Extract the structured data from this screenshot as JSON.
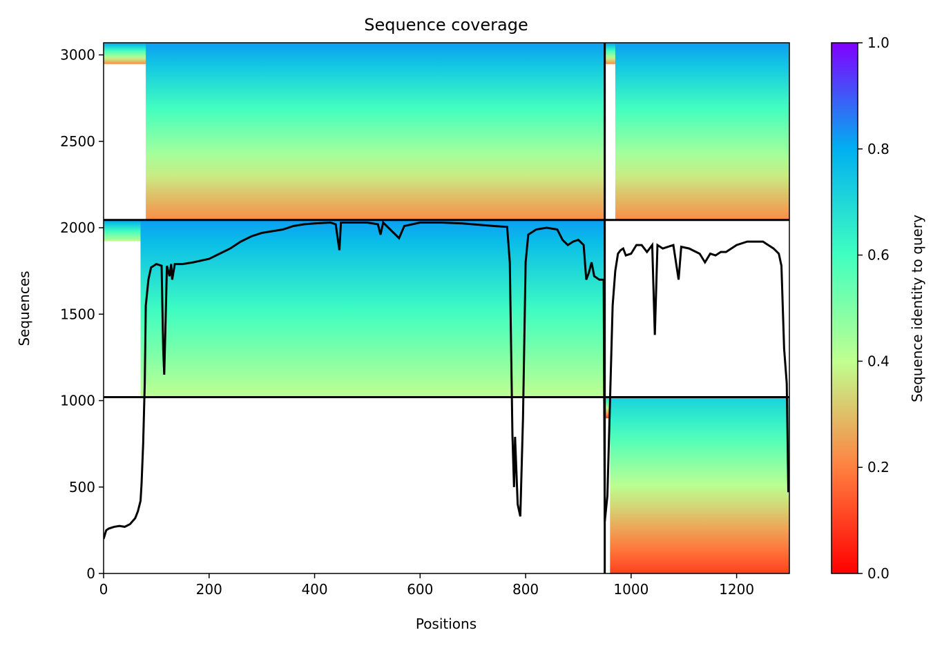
{
  "chart_data": {
    "type": "heatmap",
    "title": "Sequence coverage",
    "xlabel": "Positions",
    "ylabel": "Sequences",
    "colorbar_label": "Sequence identity to query",
    "xlim": [
      0,
      1300
    ],
    "ylim": [
      0,
      3070
    ],
    "x_ticks": [
      0,
      200,
      400,
      600,
      800,
      1000,
      1200
    ],
    "y_ticks": [
      0,
      500,
      1000,
      1500,
      2000,
      2500,
      3000
    ],
    "colorbar_range": [
      0,
      1
    ],
    "colorbar_ticks": [
      "0.0",
      "0.2",
      "0.4",
      "0.6",
      "0.8",
      "1.0"
    ],
    "colormap": [
      "#ff0000",
      "#ff8040",
      "#c0ff90",
      "#40ffc0",
      "#00b0f0",
      "#8000ff"
    ],
    "segment_boundaries": {
      "position": 950,
      "sequence": [
        1020,
        2045
      ]
    },
    "blocks": [
      {
        "x": [
          0,
          950
        ],
        "y": [
          2045,
          3070
        ],
        "identity_top": 0.82,
        "identity_bottom": 0.22,
        "coverage_start_x": 80
      },
      {
        "x": [
          950,
          1300
        ],
        "y": [
          2045,
          3070
        ],
        "identity_top": 0.82,
        "identity_bottom": 0.22,
        "coverage_start_x": 970
      },
      {
        "x": [
          0,
          950
        ],
        "y": [
          1020,
          2045
        ],
        "identity_top": 0.82,
        "identity_bottom": 0.4,
        "coverage_start_x": 70
      },
      {
        "x": [
          950,
          1300
        ],
        "y": [
          0,
          1020
        ],
        "identity_top": 0.72,
        "identity_bottom": 0.1,
        "coverage_start_x": 960
      }
    ],
    "coverage_line": {
      "color": "#000000",
      "x": [
        0,
        5,
        10,
        20,
        30,
        40,
        50,
        60,
        65,
        70,
        72,
        75,
        78,
        80,
        85,
        90,
        95,
        100,
        110,
        113,
        115,
        117,
        120,
        125,
        128,
        130,
        135,
        150,
        170,
        200,
        220,
        240,
        260,
        280,
        300,
        320,
        340,
        360,
        380,
        400,
        430,
        440,
        447,
        450,
        455,
        470,
        500,
        520,
        525,
        530,
        560,
        570,
        600,
        640,
        680,
        700,
        740,
        765,
        770,
        775,
        778,
        780,
        785,
        790,
        795,
        800,
        805,
        820,
        840,
        860,
        870,
        880,
        890,
        900,
        910,
        915,
        920,
        925,
        930,
        940,
        948,
        950,
        955,
        960,
        965,
        970,
        975,
        980,
        985,
        990,
        1000,
        1010,
        1020,
        1030,
        1040,
        1045,
        1050,
        1060,
        1080,
        1090,
        1095,
        1110,
        1130,
        1140,
        1150,
        1160,
        1170,
        1180,
        1200,
        1220,
        1240,
        1250,
        1260,
        1270,
        1280,
        1285,
        1290,
        1295,
        1298
      ],
      "y": [
        200,
        250,
        260,
        270,
        275,
        270,
        285,
        320,
        360,
        420,
        520,
        750,
        1100,
        1550,
        1700,
        1770,
        1780,
        1790,
        1780,
        1300,
        1150,
        1400,
        1780,
        1720,
        1790,
        1700,
        1790,
        1790,
        1800,
        1820,
        1850,
        1880,
        1920,
        1950,
        1970,
        1980,
        1990,
        2010,
        2020,
        2025,
        2030,
        2020,
        1870,
        2030,
        2030,
        2030,
        2030,
        2020,
        1960,
        2030,
        1940,
        2010,
        2030,
        2030,
        2025,
        2020,
        2010,
        2005,
        1800,
        800,
        500,
        790,
        400,
        330,
        900,
        1800,
        1960,
        1990,
        2000,
        1990,
        1930,
        1900,
        1920,
        1930,
        1900,
        1700,
        1740,
        1800,
        1720,
        1700,
        1700,
        300,
        450,
        1000,
        1550,
        1750,
        1850,
        1870,
        1880,
        1840,
        1850,
        1900,
        1900,
        1860,
        1900,
        1380,
        1900,
        1880,
        1900,
        1700,
        1890,
        1880,
        1850,
        1800,
        1850,
        1840,
        1860,
        1860,
        1900,
        1920,
        1920,
        1920,
        1900,
        1880,
        1850,
        1780,
        1300,
        1100,
        470
      ]
    }
  }
}
